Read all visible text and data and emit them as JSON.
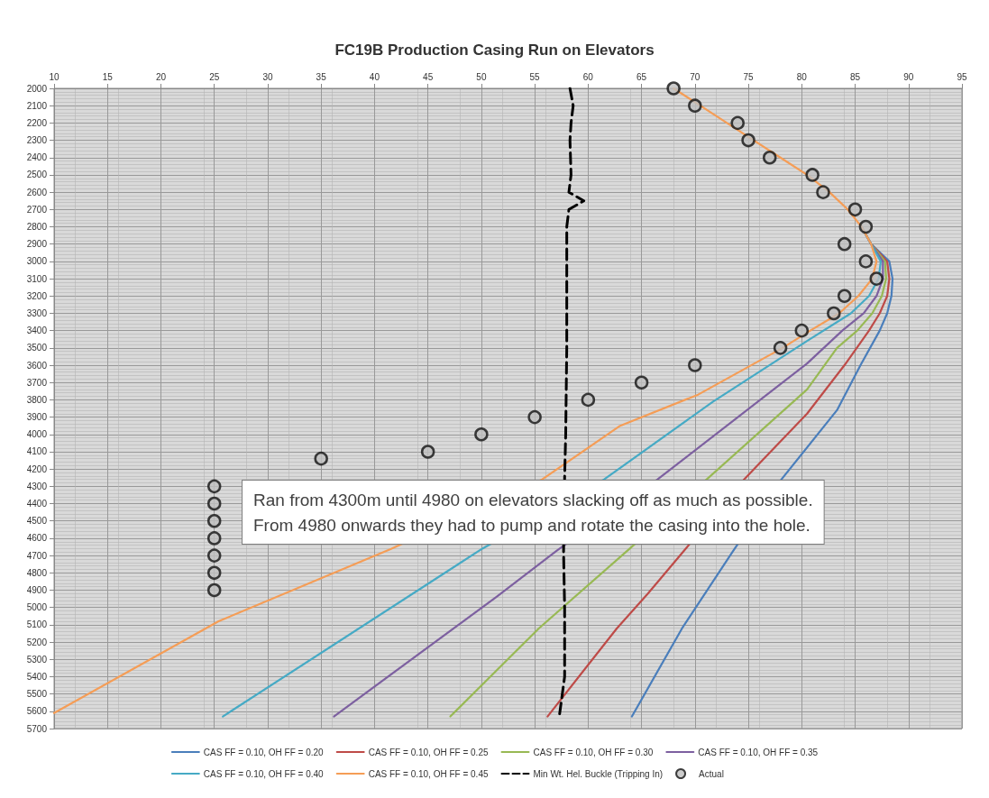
{
  "chart_data": {
    "type": "line",
    "title": "FC19B Production Casing Run on Elevators",
    "xlim": [
      10,
      95
    ],
    "xticks": [
      10,
      15,
      20,
      25,
      30,
      35,
      40,
      45,
      50,
      55,
      60,
      65,
      70,
      75,
      80,
      85,
      90,
      95
    ],
    "ylim": [
      5700,
      2000
    ],
    "yticks": [
      2000,
      2100,
      2200,
      2300,
      2400,
      2500,
      2600,
      2700,
      2800,
      2900,
      3000,
      3100,
      3200,
      3300,
      3400,
      3500,
      3600,
      3700,
      3800,
      3900,
      4000,
      4100,
      4200,
      4300,
      4400,
      4500,
      4600,
      4700,
      4800,
      4900,
      5000,
      5100,
      5200,
      5300,
      5400,
      5500,
      5600,
      5700
    ],
    "grid": true,
    "legend": "bottom",
    "marker": "none",
    "line_style": "solid",
    "annotations": [
      "Ran from 4300m until 4980 on elevators slacking off as much as possible.\nFrom 4980 onwards they had to pump and rotate the casing into the hole."
    ],
    "series": [
      {
        "name": "CAS FF = 0.10, OH FF = 0.20",
        "color": "#4a7ebb",
        "x": [
          85.6,
          86.5,
          88.2,
          88.5,
          88.4,
          88.0,
          87.3,
          85.5,
          83.3,
          78.1,
          73.5,
          68.8,
          64.1
        ],
        "values": [
          2800,
          2900,
          3000,
          3100,
          3200,
          3300,
          3400,
          3600,
          3860,
          4260,
          4680,
          5120,
          5630
        ]
      },
      {
        "name": "CAS FF = 0.10, OH FF = 0.25",
        "color": "#be4b48",
        "x": [
          85.6,
          86.5,
          88.0,
          88.2,
          88.0,
          87.3,
          86.3,
          84.0,
          80.5,
          74.6,
          65.6,
          62.7,
          56.2
        ],
        "values": [
          2800,
          2900,
          3000,
          3100,
          3200,
          3300,
          3400,
          3600,
          3880,
          4260,
          4920,
          5120,
          5630
        ]
      },
      {
        "name": "CAS FF = 0.10, OH FF = 0.30",
        "color": "#98b954",
        "x": [
          85.6,
          86.5,
          87.8,
          87.9,
          87.5,
          86.6,
          85.2,
          83.3,
          80.5,
          71.1,
          63.9,
          55.4,
          47.1
        ],
        "values": [
          2800,
          2900,
          3000,
          3100,
          3200,
          3300,
          3400,
          3500,
          3740,
          4260,
          4660,
          5120,
          5630
        ]
      },
      {
        "name": "CAS FF = 0.10, OH FF = 0.35",
        "color": "#7d60a0",
        "x": [
          85.6,
          86.5,
          87.6,
          87.6,
          87.0,
          85.8,
          83.8,
          80.5,
          66.5,
          57.1,
          51.4,
          36.2
        ],
        "values": [
          2800,
          2900,
          3000,
          3100,
          3200,
          3300,
          3400,
          3590,
          4260,
          4670,
          4940,
          5630
        ]
      },
      {
        "name": "CAS FF = 0.10, OH FF = 0.40",
        "color": "#46aac5",
        "x": [
          85.6,
          86.5,
          87.4,
          87.2,
          86.3,
          84.6,
          80.5,
          71.7,
          61.5,
          50.1,
          25.8
        ],
        "values": [
          2800,
          2900,
          3000,
          3100,
          3200,
          3300,
          3460,
          3810,
          4260,
          4660,
          5630
        ]
      },
      {
        "name": "CAS FF = 0.10, OH FF = 0.45",
        "color": "#f59d56",
        "x": [
          68,
          70.5,
          73,
          75.5,
          78,
          80.5,
          82.6,
          84.3,
          85.6,
          86.5,
          87.0,
          86.6,
          85.3,
          83.5,
          80.8,
          78.2,
          70.3,
          63.0,
          55.7,
          41.6,
          25.4,
          10
        ],
        "values": [
          2000,
          2100,
          2200,
          2300,
          2400,
          2500,
          2600,
          2700,
          2800,
          2900,
          3000,
          3100,
          3200,
          3300,
          3400,
          3500,
          3770,
          3950,
          4260,
          4660,
          5080,
          5610
        ]
      },
      {
        "name": "Min Wt. Hel. Buckle (Tripping In)",
        "color": "#000000",
        "line_style": "dashed",
        "x": [
          58.3,
          58.6,
          58.4,
          58.3,
          58.4,
          58.2,
          59.6,
          58.2,
          58.0,
          58.0,
          58.0,
          57.9,
          57.8,
          57.7,
          57.8,
          57.8,
          57.3
        ],
        "values": [
          2000,
          2100,
          2200,
          2300,
          2500,
          2600,
          2650,
          2700,
          2800,
          3000,
          3500,
          4000,
          4250,
          4680,
          5000,
          5400,
          5630
        ]
      },
      {
        "name": "Actual",
        "type": "scatter",
        "marker": "circle",
        "color": "#bfbfbf",
        "x": [
          68,
          70,
          74,
          75,
          77,
          81,
          82,
          85,
          86,
          84,
          86,
          87,
          84,
          83,
          80,
          78,
          70,
          65,
          60,
          55,
          50,
          45,
          35,
          25,
          25,
          25,
          25,
          25,
          25,
          25
        ],
        "values": [
          2000,
          2100,
          2200,
          2300,
          2400,
          2500,
          2600,
          2700,
          2800,
          2900,
          3000,
          3100,
          3200,
          3300,
          3400,
          3500,
          3600,
          3700,
          3800,
          3900,
          4000,
          4100,
          4140,
          4300,
          4400,
          4500,
          4600,
          4700,
          4800,
          4900
        ]
      }
    ]
  }
}
